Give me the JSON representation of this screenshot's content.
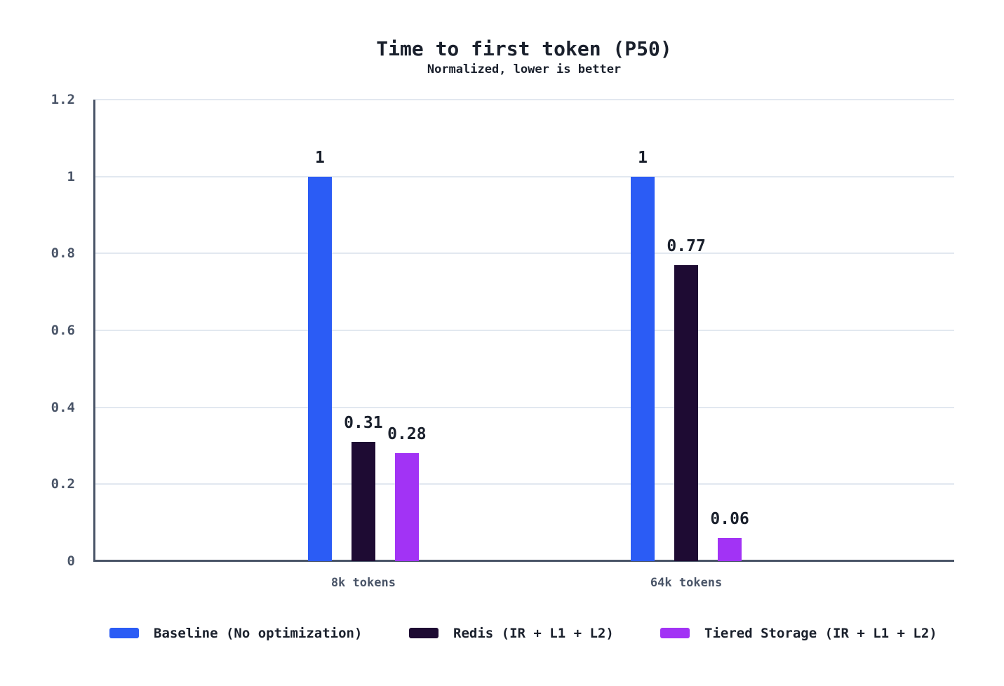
{
  "title": "Time to first token (P50)",
  "subtitle": "Normalized, lower is better",
  "colors": {
    "background": "#ffffff",
    "title_text": "#1a202c",
    "axis_line": "#4a5568",
    "tick_text": "#4a5568",
    "gridline": "#e2e8f0",
    "value_label_text": "#1a202c",
    "series_blue": "#2b5cf5",
    "series_dark_purple": "#1e0b33",
    "series_bright_purple": "#a233f5"
  },
  "chart_data": {
    "type": "bar",
    "title": "Time to first token (P50)",
    "subtitle": "Normalized, lower is better",
    "categories": [
      "8k tokens",
      "64k tokens"
    ],
    "series": [
      {
        "name": "Baseline (No optimization)",
        "color": "#2b5cf5",
        "values": [
          1,
          1
        ],
        "value_labels": [
          "1",
          "1"
        ]
      },
      {
        "name": "Redis (IR + L1 + L2)",
        "color": "#1e0b33",
        "values": [
          0.31,
          0.77
        ],
        "value_labels": [
          "0.31",
          "0.77"
        ]
      },
      {
        "name": "Tiered Storage (IR + L1 + L2)",
        "color": "#a233f5",
        "values": [
          0.28,
          0.06
        ],
        "value_labels": [
          "0.28",
          "0.06"
        ]
      }
    ],
    "ylim": [
      0,
      1.2
    ],
    "ytick_values": [
      0,
      0.2,
      0.4,
      0.6,
      0.8,
      1,
      1.2
    ],
    "ytick_labels": [
      "0",
      "0.2",
      "0.4",
      "0.6",
      "0.8",
      "1",
      "1.2"
    ],
    "xlabel": "",
    "ylabel": "",
    "grid": true,
    "legend_position": "bottom"
  }
}
